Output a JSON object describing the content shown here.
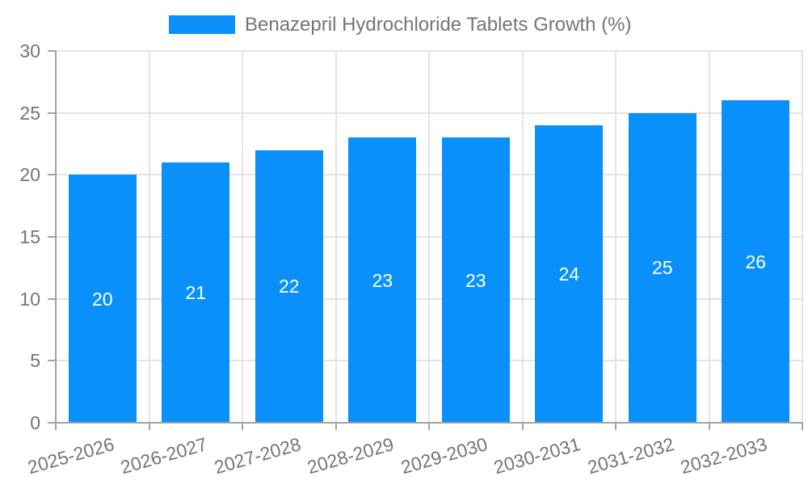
{
  "legend": {
    "label": "Benazepril Hydrochloride Tablets Growth (%)"
  },
  "chart_data": {
    "type": "bar",
    "title": "Benazepril Hydrochloride Tablets Growth (%)",
    "categories": [
      "2025-2026",
      "2026-2027",
      "2027-2028",
      "2028-2029",
      "2029-2030",
      "2030-2031",
      "2031-2032",
      "2032-2033"
    ],
    "values": [
      20,
      21,
      22,
      23,
      23,
      24,
      25,
      26
    ],
    "xlabel": "",
    "ylabel": "",
    "ylim": [
      0,
      30
    ],
    "yticks": [
      0,
      5,
      10,
      15,
      20,
      25,
      30
    ],
    "grid": true,
    "legend_position": "top",
    "bar_color": "#0990fb",
    "value_label_color": "#ffffff",
    "axis_text_color": "#757575",
    "gridline_color": "#e4e4e4",
    "axis_line_color": "#a3a3a3"
  }
}
